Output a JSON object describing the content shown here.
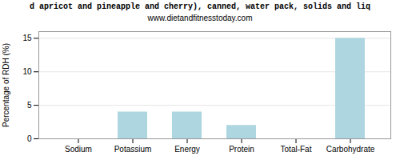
{
  "chart_data": {
    "type": "bar",
    "title": "d apricot and pineapple and cherry), canned, water pack, solids and liq",
    "subtitle": "www.dietandfitnesstoday.com",
    "categories": [
      "Sodium",
      "Potassium",
      "Energy",
      "Protein",
      "Total-Fat",
      "Carbohydrate"
    ],
    "values": [
      0.0,
      4.0,
      4.0,
      2.0,
      0.0,
      15.0
    ],
    "color": "#aed6e0",
    "ylabel": "Percentage of RDH (%)",
    "ylim": [
      0,
      16
    ],
    "yticks": [
      0,
      5,
      10,
      15
    ],
    "grid": true
  }
}
